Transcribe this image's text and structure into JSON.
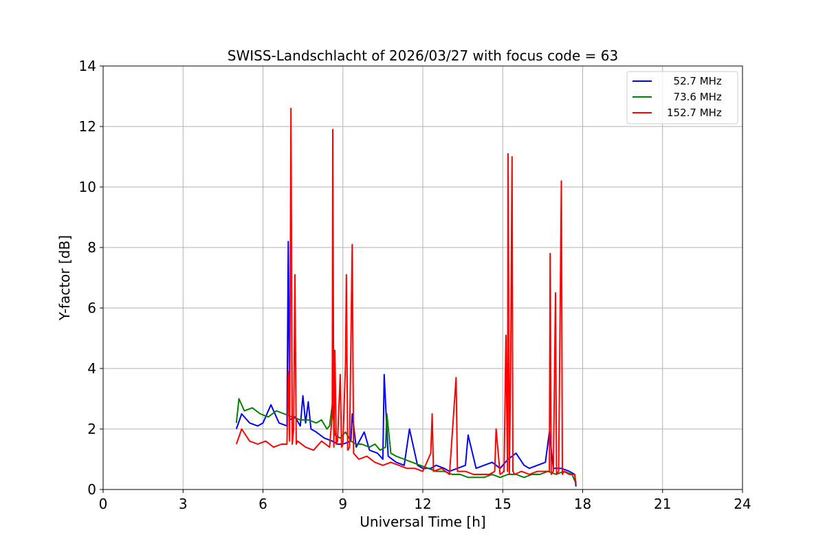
{
  "chart_data": {
    "type": "line",
    "title": "SWISS-Landschlacht of 2026/03/27 with focus code = 63",
    "xlabel": "Universal Time [h]",
    "ylabel": "Y-factor [dB]",
    "xlim": [
      0,
      24
    ],
    "ylim": [
      0,
      14
    ],
    "xticks": [
      0,
      3,
      6,
      9,
      12,
      15,
      18,
      21,
      24
    ],
    "yticks": [
      0,
      2,
      4,
      6,
      8,
      10,
      12,
      14
    ],
    "grid": true,
    "legend_position": "top-right",
    "series": [
      {
        "name": "  52.7 MHz",
        "color": "#0000ff",
        "x": [
          5.0,
          5.2,
          5.5,
          5.8,
          6.0,
          6.3,
          6.6,
          6.9,
          6.95,
          7.0,
          7.2,
          7.4,
          7.5,
          7.6,
          7.7,
          7.8,
          8.0,
          8.3,
          8.6,
          8.8,
          9.0,
          9.3,
          9.35,
          9.5,
          9.8,
          10.0,
          10.3,
          10.5,
          10.55,
          10.7,
          11.0,
          11.3,
          11.5,
          11.8,
          12.0,
          12.3,
          12.5,
          12.8,
          13.0,
          13.3,
          13.6,
          13.7,
          14.0,
          14.3,
          14.6,
          14.9,
          15.2,
          15.5,
          15.8,
          16.0,
          16.3,
          16.6,
          16.75,
          16.9,
          17.2,
          17.5,
          17.7,
          17.75
        ],
        "y": [
          2.0,
          2.5,
          2.2,
          2.1,
          2.2,
          2.8,
          2.2,
          2.1,
          8.2,
          2.3,
          2.4,
          2.1,
          3.1,
          2.2,
          2.9,
          2.0,
          1.9,
          1.7,
          1.6,
          1.5,
          1.5,
          1.6,
          2.5,
          1.4,
          1.9,
          1.3,
          1.2,
          1.0,
          3.8,
          1.1,
          0.9,
          0.8,
          2.0,
          0.8,
          0.7,
          0.7,
          0.8,
          0.7,
          0.6,
          0.7,
          0.8,
          1.8,
          0.7,
          0.8,
          0.9,
          0.7,
          1.0,
          1.2,
          0.8,
          0.7,
          0.8,
          0.9,
          1.9,
          0.7,
          0.7,
          0.6,
          0.5,
          0.1
        ]
      },
      {
        "name": "  73.6 MHz",
        "color": "#008000",
        "x": [
          5.0,
          5.1,
          5.3,
          5.6,
          5.9,
          6.2,
          6.5,
          6.8,
          7.1,
          7.4,
          7.7,
          8.0,
          8.2,
          8.4,
          8.5,
          8.6,
          8.7,
          8.9,
          9.1,
          9.3,
          9.5,
          9.7,
          10.0,
          10.2,
          10.4,
          10.6,
          10.65,
          10.8,
          11.0,
          11.3,
          11.6,
          11.9,
          12.2,
          12.5,
          12.8,
          13.1,
          13.4,
          13.7,
          14.0,
          14.3,
          14.6,
          14.9,
          15.2,
          15.5,
          15.8,
          16.1,
          16.4,
          16.7,
          17.0,
          17.3,
          17.6,
          17.75
        ],
        "y": [
          2.2,
          3.0,
          2.6,
          2.7,
          2.5,
          2.4,
          2.6,
          2.5,
          2.4,
          2.3,
          2.3,
          2.2,
          2.3,
          2.0,
          2.1,
          2.8,
          1.8,
          1.7,
          1.9,
          1.6,
          1.5,
          1.5,
          1.4,
          1.5,
          1.3,
          1.4,
          2.5,
          1.2,
          1.1,
          1.0,
          0.9,
          0.8,
          0.7,
          0.6,
          0.6,
          0.5,
          0.5,
          0.4,
          0.4,
          0.4,
          0.5,
          0.4,
          0.5,
          0.5,
          0.4,
          0.5,
          0.5,
          0.6,
          0.5,
          0.6,
          0.5,
          0.2
        ]
      },
      {
        "name": "152.7 MHz",
        "color": "#ff0000",
        "x": [
          5.0,
          5.2,
          5.5,
          5.8,
          6.1,
          6.4,
          6.7,
          6.9,
          6.95,
          7.0,
          7.05,
          7.1,
          7.15,
          7.2,
          7.25,
          7.3,
          7.6,
          7.9,
          8.2,
          8.5,
          8.6,
          8.62,
          8.66,
          8.7,
          8.75,
          8.8,
          8.9,
          8.95,
          9.0,
          9.1,
          9.13,
          9.18,
          9.25,
          9.35,
          9.4,
          9.6,
          9.9,
          10.2,
          10.5,
          10.8,
          11.1,
          11.4,
          11.7,
          12.0,
          12.3,
          12.35,
          12.4,
          12.7,
          13.0,
          13.25,
          13.3,
          13.6,
          13.9,
          14.2,
          14.5,
          14.7,
          14.75,
          14.9,
          15.05,
          15.12,
          15.18,
          15.2,
          15.25,
          15.3,
          15.35,
          15.38,
          15.45,
          15.7,
          16.0,
          16.3,
          16.6,
          16.75,
          16.78,
          16.82,
          16.9,
          16.98,
          17.02,
          17.1,
          17.2,
          17.24,
          17.3,
          17.5,
          17.7,
          17.75
        ],
        "y": [
          1.5,
          2.0,
          1.6,
          1.5,
          1.6,
          1.4,
          1.5,
          1.5,
          3.9,
          1.6,
          12.6,
          1.5,
          2.0,
          7.1,
          1.5,
          1.6,
          1.4,
          1.3,
          1.6,
          1.4,
          2.5,
          11.9,
          1.4,
          4.6,
          1.5,
          1.6,
          3.8,
          1.4,
          1.5,
          4.2,
          7.1,
          1.3,
          1.4,
          8.1,
          1.2,
          1.0,
          1.1,
          0.9,
          0.8,
          0.9,
          0.8,
          0.7,
          0.7,
          0.6,
          1.2,
          2.5,
          0.6,
          0.7,
          0.5,
          3.7,
          0.6,
          0.6,
          0.5,
          0.5,
          0.5,
          0.6,
          2.0,
          0.5,
          0.6,
          5.1,
          0.6,
          11.1,
          0.5,
          4.4,
          11.0,
          0.6,
          0.5,
          0.6,
          0.5,
          0.6,
          0.6,
          0.6,
          7.8,
          0.5,
          0.6,
          6.5,
          0.5,
          0.6,
          10.2,
          0.5,
          0.6,
          0.5,
          0.5,
          0.2
        ]
      }
    ]
  }
}
